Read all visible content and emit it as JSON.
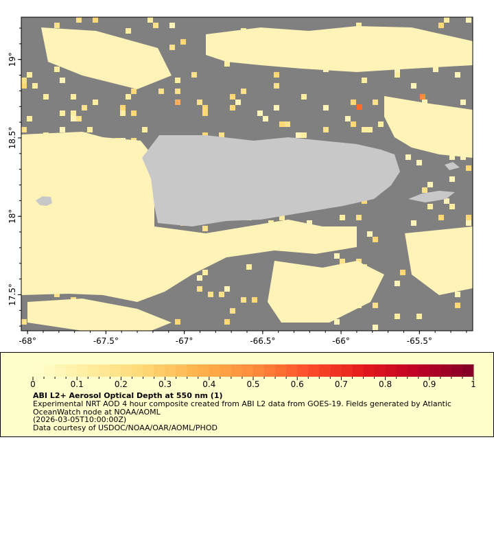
{
  "map": {
    "lon_range": [
      -68.04,
      -65.16
    ],
    "lat_range": [
      17.27,
      19.27
    ],
    "x_ticks": [
      {
        "value": -68,
        "label": "-68°"
      },
      {
        "value": -67.5,
        "label": "-67.5°"
      },
      {
        "value": -67,
        "label": "-67°"
      },
      {
        "value": -66.5,
        "label": "-66.5°"
      },
      {
        "value": -66,
        "label": "-66°"
      },
      {
        "value": -65.5,
        "label": "-65.5°"
      }
    ],
    "y_ticks": [
      {
        "value": 19,
        "label": "19°"
      },
      {
        "value": 18.5,
        "label": "18.5°"
      },
      {
        "value": 18,
        "label": "18°"
      },
      {
        "value": 17.5,
        "label": "17.5°"
      }
    ],
    "colors": {
      "no_data": "#808080",
      "land": "#c8c8c8",
      "low_aod": "#fff3b8"
    }
  },
  "legend": {
    "scale_min": 0,
    "scale_max": 1,
    "tick_labels": [
      "0",
      "0.1",
      "0.2",
      "0.3",
      "0.4",
      "0.5",
      "0.6",
      "0.7",
      "0.8",
      "0.9",
      "1"
    ],
    "colors": [
      "#ffffcc",
      "#ffeda0",
      "#fed976",
      "#feb24c",
      "#fd8d3c",
      "#fc4e2a",
      "#e31a1c",
      "#bd0026",
      "#800026"
    ],
    "title": "ABI L2+ Aerosol Optical Depth at 550 nm (1)",
    "line1": "Experimental NRT AOD 4 hour composite created from ABI L2 data from GOES-19. Fields generated by Atlantic",
    "line2": "OceanWatch node at NOAA/AOML",
    "line3": "(2026-03-05T10:00:00Z)",
    "line4": "Data courtesy of USDOC/NOAA/OAR/AOML/PHOD"
  }
}
